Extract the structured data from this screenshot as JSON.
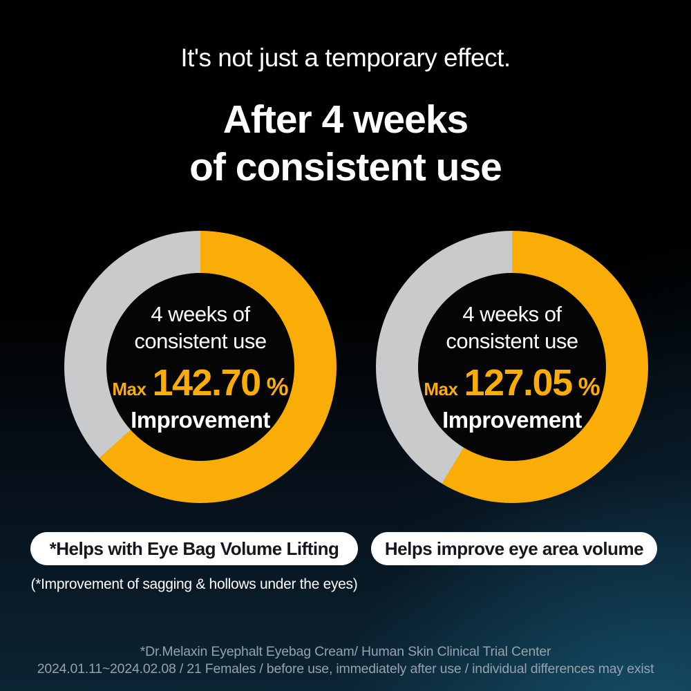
{
  "header": {
    "subtitle": "It's not just a temporary effect.",
    "title_line1": "After 4 weeks",
    "title_line2": "of consistent use"
  },
  "chart_data": [
    {
      "type": "donut",
      "label_line1": "4 weeks of",
      "label_line2": "consistent use",
      "value_prefix": "Max",
      "value": 142.7,
      "value_text": "142.70",
      "unit": "%",
      "caption": "Improvement",
      "arc_fill_deg": 228,
      "arc_color": "#FBAD07",
      "track_color": "#C9CACC",
      "badge": "*Helps with Eye Bag Volume Lifting"
    },
    {
      "type": "donut",
      "label_line1": "4 weeks of",
      "label_line2": "consistent use",
      "value_prefix": "Max",
      "value": 127.05,
      "value_text": "127.05",
      "unit": "%",
      "caption": "Improvement",
      "arc_fill_deg": 211,
      "arc_color": "#FBAD07",
      "track_color": "#C9CACC",
      "badge": "Helps improve eye area volume"
    }
  ],
  "footnote": "(*Improvement of sagging & hollows under the eyes)",
  "footer": {
    "line1": "*Dr.Melaxin Eyephalt Eyebag Cream/ Human Skin Clinical Trial Center",
    "line2": "2024.01.11~2024.02.08 / 21 Females / before use, immediately after use / individual differences may exist"
  },
  "colors": {
    "accent_yellow": "#FBAD07",
    "track_gray": "#C9CACC",
    "pill_background": "#FFFFFF",
    "pill_text": "#16161E",
    "footer_text": "#96A3AC",
    "background_top": "#000000",
    "background_bottom_right": "#15475C"
  }
}
